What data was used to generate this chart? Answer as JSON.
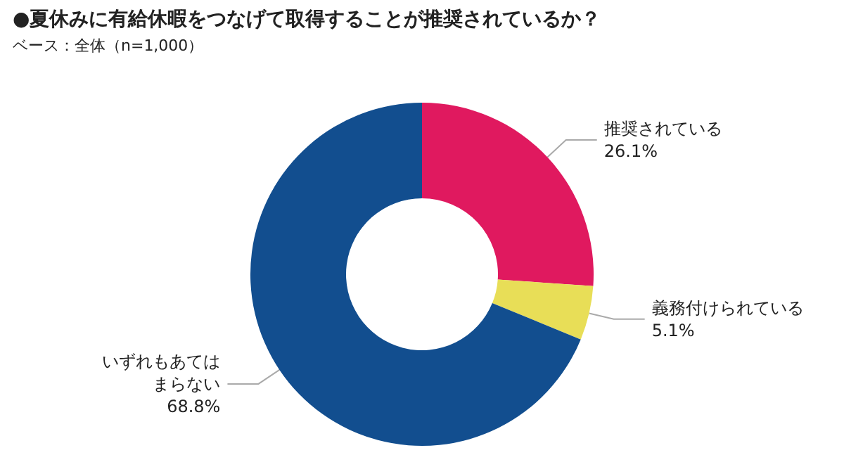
{
  "chart_data": {
    "type": "donut",
    "title": "●夏休みに有給休暇をつなげて取得することが推奨されているか？",
    "subtitle": "ベース：全体（n=1,000）",
    "categories": [
      "推奨されている",
      "義務付けられている",
      "いずれもあてはまらない"
    ],
    "values": [
      26.1,
      5.1,
      68.8
    ],
    "colors": [
      "#e0195f",
      "#e8de57",
      "#124e8f"
    ],
    "value_labels": [
      "26.1%",
      "5.1%",
      "68.8%"
    ],
    "legend": false
  }
}
